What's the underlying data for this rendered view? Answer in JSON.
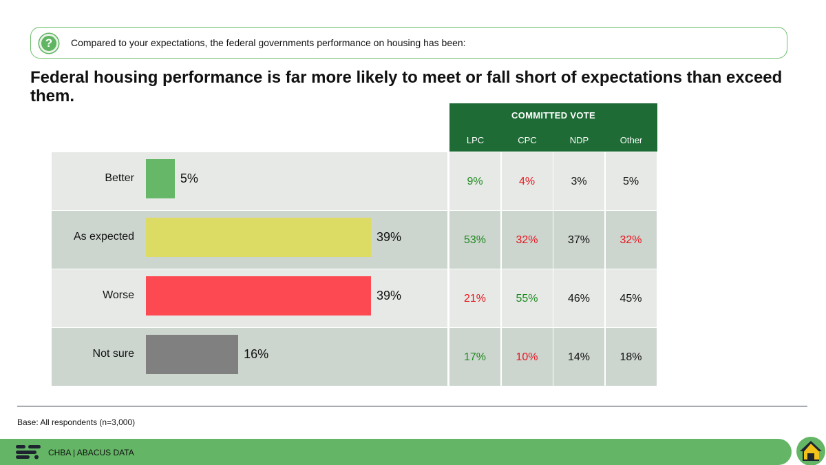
{
  "question": {
    "icon": "question-icon",
    "text": "Compared to your expectations, the federal governments performance on housing has been:"
  },
  "headline": "Federal housing performance is far more likely to meet or fall short of expectations than exceed them.",
  "chart_data": {
    "type": "bar",
    "orientation": "horizontal",
    "categories": [
      "Better",
      "As expected",
      "Worse",
      "Not sure"
    ],
    "values": [
      5,
      39,
      39,
      16
    ],
    "value_labels": [
      "5%",
      "39%",
      "39%",
      "16%"
    ],
    "colors": [
      "#66b868",
      "#dcdb63",
      "#fd4a52",
      "#808080"
    ],
    "xlim": [
      0,
      100
    ],
    "unit": "%"
  },
  "committed_vote": {
    "title": "COMMITTED VOTE",
    "parties": [
      "LPC",
      "CPC",
      "NDP",
      "Other"
    ],
    "rows": [
      {
        "category": "Better",
        "values": [
          "9%",
          "4%",
          "3%",
          "5%"
        ],
        "colors": [
          "#1e8a1e",
          "#e8161e",
          "#111111",
          "#111111"
        ]
      },
      {
        "category": "As expected",
        "values": [
          "53%",
          "32%",
          "37%",
          "32%"
        ],
        "colors": [
          "#1e8a1e",
          "#e8161e",
          "#111111",
          "#e8161e"
        ]
      },
      {
        "category": "Worse",
        "values": [
          "21%",
          "55%",
          "46%",
          "45%"
        ],
        "colors": [
          "#e8161e",
          "#1e8a1e",
          "#111111",
          "#111111"
        ]
      },
      {
        "category": "Not sure",
        "values": [
          "17%",
          "10%",
          "14%",
          "18%"
        ],
        "colors": [
          "#1e8a1e",
          "#e8161e",
          "#111111",
          "#111111"
        ]
      }
    ]
  },
  "base_note": "Base: All respondents (n=3,000)",
  "footer": {
    "text": "CHBA  |  ABACUS DATA",
    "logo_icon": "abacus-logo-icon",
    "home_icon": "home-icon"
  },
  "colors": {
    "accent_green": "#64b565",
    "header_dark_green": "#1e6b35",
    "row_light": "#e6e9e6",
    "row_dark": "#cdd5cf"
  }
}
